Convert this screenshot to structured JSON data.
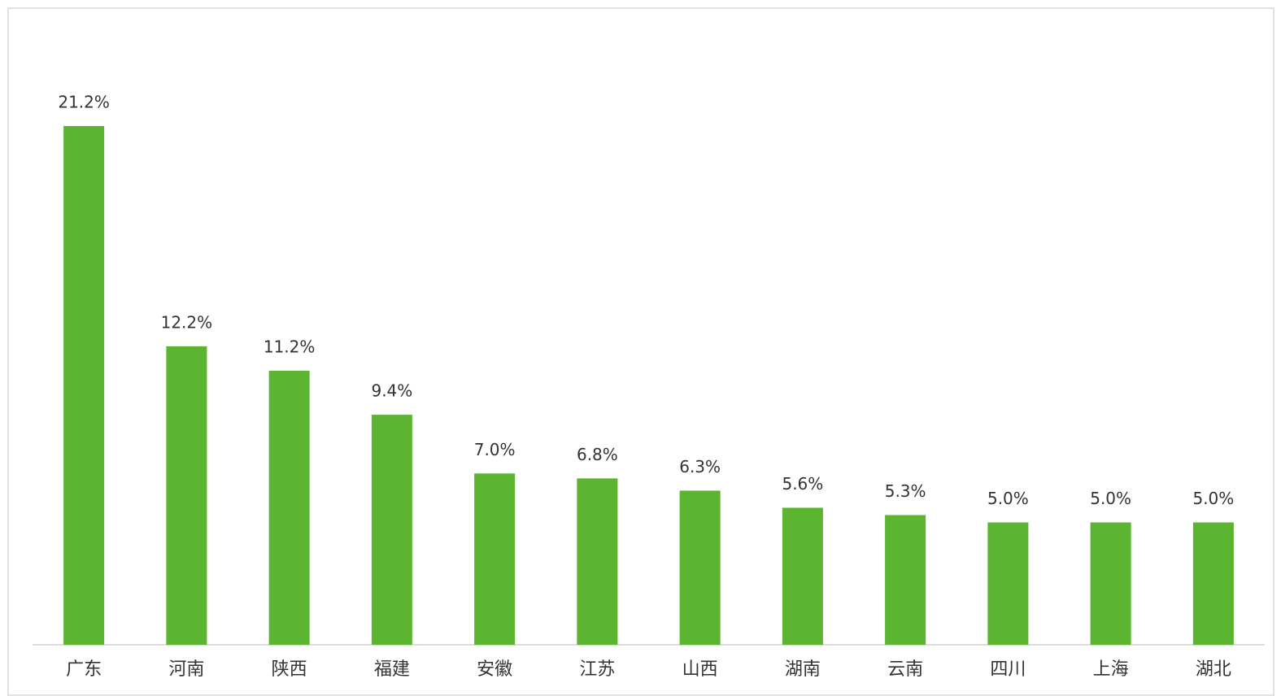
{
  "chart_data": {
    "type": "bar",
    "categories": [
      "广东",
      "河南",
      "陕西",
      "福建",
      "安徽",
      "江苏",
      "山西",
      "湖南",
      "云南",
      "四川",
      "上海",
      "湖北"
    ],
    "values": [
      21.2,
      12.2,
      11.2,
      9.4,
      7.0,
      6.8,
      6.3,
      5.6,
      5.3,
      5.0,
      5.0,
      5.0
    ],
    "value_labels": [
      "21.2%",
      "12.2%",
      "11.2%",
      "9.4%",
      "7.0%",
      "6.8%",
      "6.3%",
      "5.6%",
      "5.3%",
      "5.0%",
      "5.0%",
      "5.0%"
    ],
    "color": "#5cb531"
  }
}
